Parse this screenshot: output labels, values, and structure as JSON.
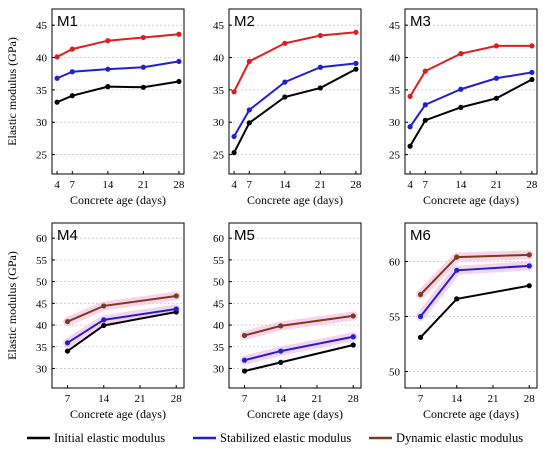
{
  "colors": {
    "initial": "#000000",
    "stabilized": "#1f1fd6",
    "dynamic_m1_m3": "#e01c1c",
    "dynamic_m4_m6": "#7a3b1f",
    "band": "#f5c6e6",
    "grid": "#c8c8c8"
  },
  "legend": {
    "items": [
      {
        "label": "Initial elastic modulus",
        "color": "#000000"
      },
      {
        "label": "Stabilized elastic modulus",
        "color": "#1f1fd6"
      },
      {
        "label": "Dynamic elastic modulus",
        "color": "#7a3b1f"
      }
    ]
  },
  "chart_data": [
    {
      "type": "line",
      "title": "M1",
      "xlabel": "Concrete age (days)",
      "ylabel": "Elastic modulus (GPa)",
      "x": [
        4,
        7,
        14,
        21,
        28
      ],
      "xticks": [
        4,
        7,
        14,
        21,
        28
      ],
      "xlim": [
        3,
        29
      ],
      "ylim": [
        22,
        47.5
      ],
      "yticks": [
        25,
        30,
        35,
        40,
        45
      ],
      "grid": "horizontal",
      "series": [
        {
          "key": "initial",
          "values": [
            33.1,
            34.1,
            35.5,
            35.4,
            36.3
          ],
          "color": "#000000"
        },
        {
          "key": "stabilized",
          "values": [
            36.8,
            37.8,
            38.2,
            38.5,
            39.4
          ],
          "color": "#1f1fd6"
        },
        {
          "key": "dynamic",
          "values": [
            40.1,
            41.3,
            42.6,
            43.1,
            43.6
          ],
          "color": "#e01c1c"
        }
      ]
    },
    {
      "type": "line",
      "title": "M2",
      "xlabel": "Concrete age (days)",
      "ylabel": "",
      "x": [
        4,
        7,
        14,
        21,
        28
      ],
      "xticks": [
        4,
        7,
        14,
        21,
        28
      ],
      "xlim": [
        3,
        29
      ],
      "ylim": [
        22,
        47.5
      ],
      "yticks": [
        25,
        30,
        35,
        40,
        45
      ],
      "grid": "horizontal",
      "series": [
        {
          "key": "initial",
          "values": [
            25.3,
            29.9,
            33.9,
            35.3,
            38.2
          ],
          "color": "#000000"
        },
        {
          "key": "stabilized",
          "values": [
            27.8,
            31.9,
            36.2,
            38.5,
            39.1
          ],
          "color": "#1f1fd6"
        },
        {
          "key": "dynamic",
          "values": [
            34.7,
            39.4,
            42.2,
            43.4,
            43.9
          ],
          "color": "#e01c1c"
        }
      ]
    },
    {
      "type": "line",
      "title": "M3",
      "xlabel": "Concrete age (days)",
      "ylabel": "",
      "x": [
        4,
        7,
        14,
        21,
        28
      ],
      "xticks": [
        4,
        7,
        14,
        21,
        28
      ],
      "xlim": [
        3,
        29
      ],
      "ylim": [
        22,
        47.5
      ],
      "yticks": [
        25,
        30,
        35,
        40,
        45
      ],
      "grid": "horizontal",
      "series": [
        {
          "key": "initial",
          "values": [
            26.3,
            30.3,
            32.3,
            33.7,
            36.6
          ],
          "color": "#000000"
        },
        {
          "key": "stabilized",
          "values": [
            29.3,
            32.7,
            35.1,
            36.8,
            37.7
          ],
          "color": "#1f1fd6"
        },
        {
          "key": "dynamic",
          "values": [
            34.0,
            37.9,
            40.6,
            41.8,
            41.8
          ],
          "color": "#e01c1c"
        }
      ]
    },
    {
      "type": "line",
      "title": "M4",
      "xlabel": "Concrete age (days)",
      "ylabel": "Elastic modulus (GPa)",
      "x": [
        7,
        14,
        28
      ],
      "xticks": [
        7,
        14,
        21,
        28
      ],
      "xlim": [
        4,
        29.5
      ],
      "ylim": [
        25.5,
        63.5
      ],
      "yticks": [
        30,
        35,
        40,
        45,
        50,
        55,
        60
      ],
      "grid": "horizontal",
      "series": [
        {
          "key": "initial",
          "values": [
            34.0,
            39.9,
            43.0
          ],
          "color": "#000000"
        },
        {
          "key": "stabilized",
          "values": [
            35.9,
            41.2,
            43.7
          ],
          "color": "#1f1fd6"
        },
        {
          "key": "dynamic",
          "values": [
            40.8,
            44.4,
            46.7
          ],
          "color": "#7a3b1f"
        }
      ]
    },
    {
      "type": "line",
      "title": "M5",
      "xlabel": "Concrete age (days)",
      "ylabel": "",
      "x": [
        7,
        14,
        28
      ],
      "xticks": [
        7,
        14,
        21,
        28
      ],
      "xlim": [
        4,
        29.5
      ],
      "ylim": [
        25.5,
        63.5
      ],
      "yticks": [
        30,
        35,
        40,
        45,
        50,
        55,
        60
      ],
      "grid": "horizontal",
      "series": [
        {
          "key": "initial",
          "values": [
            29.4,
            31.4,
            35.4
          ],
          "color": "#000000"
        },
        {
          "key": "stabilized",
          "values": [
            31.9,
            34.0,
            37.3
          ],
          "color": "#1f1fd6"
        },
        {
          "key": "dynamic",
          "values": [
            37.6,
            39.8,
            42.1
          ],
          "color": "#7a3b1f"
        }
      ]
    },
    {
      "type": "line",
      "title": "M6",
      "xlabel": "Concrete age (days)",
      "ylabel": "",
      "x": [
        7,
        14,
        28
      ],
      "xticks": [
        7,
        14,
        21,
        28
      ],
      "xlim": [
        4,
        29.5
      ],
      "ylim": [
        48.5,
        63.5
      ],
      "yticks": [
        50,
        55,
        60
      ],
      "grid": "horizontal",
      "series": [
        {
          "key": "initial",
          "values": [
            53.1,
            56.6,
            57.8
          ],
          "color": "#000000"
        },
        {
          "key": "stabilized",
          "values": [
            55.0,
            59.2,
            59.6
          ],
          "color": "#1f1fd6"
        },
        {
          "key": "dynamic",
          "values": [
            57.0,
            60.4,
            60.6
          ],
          "color": "#7a3b1f"
        }
      ]
    }
  ]
}
